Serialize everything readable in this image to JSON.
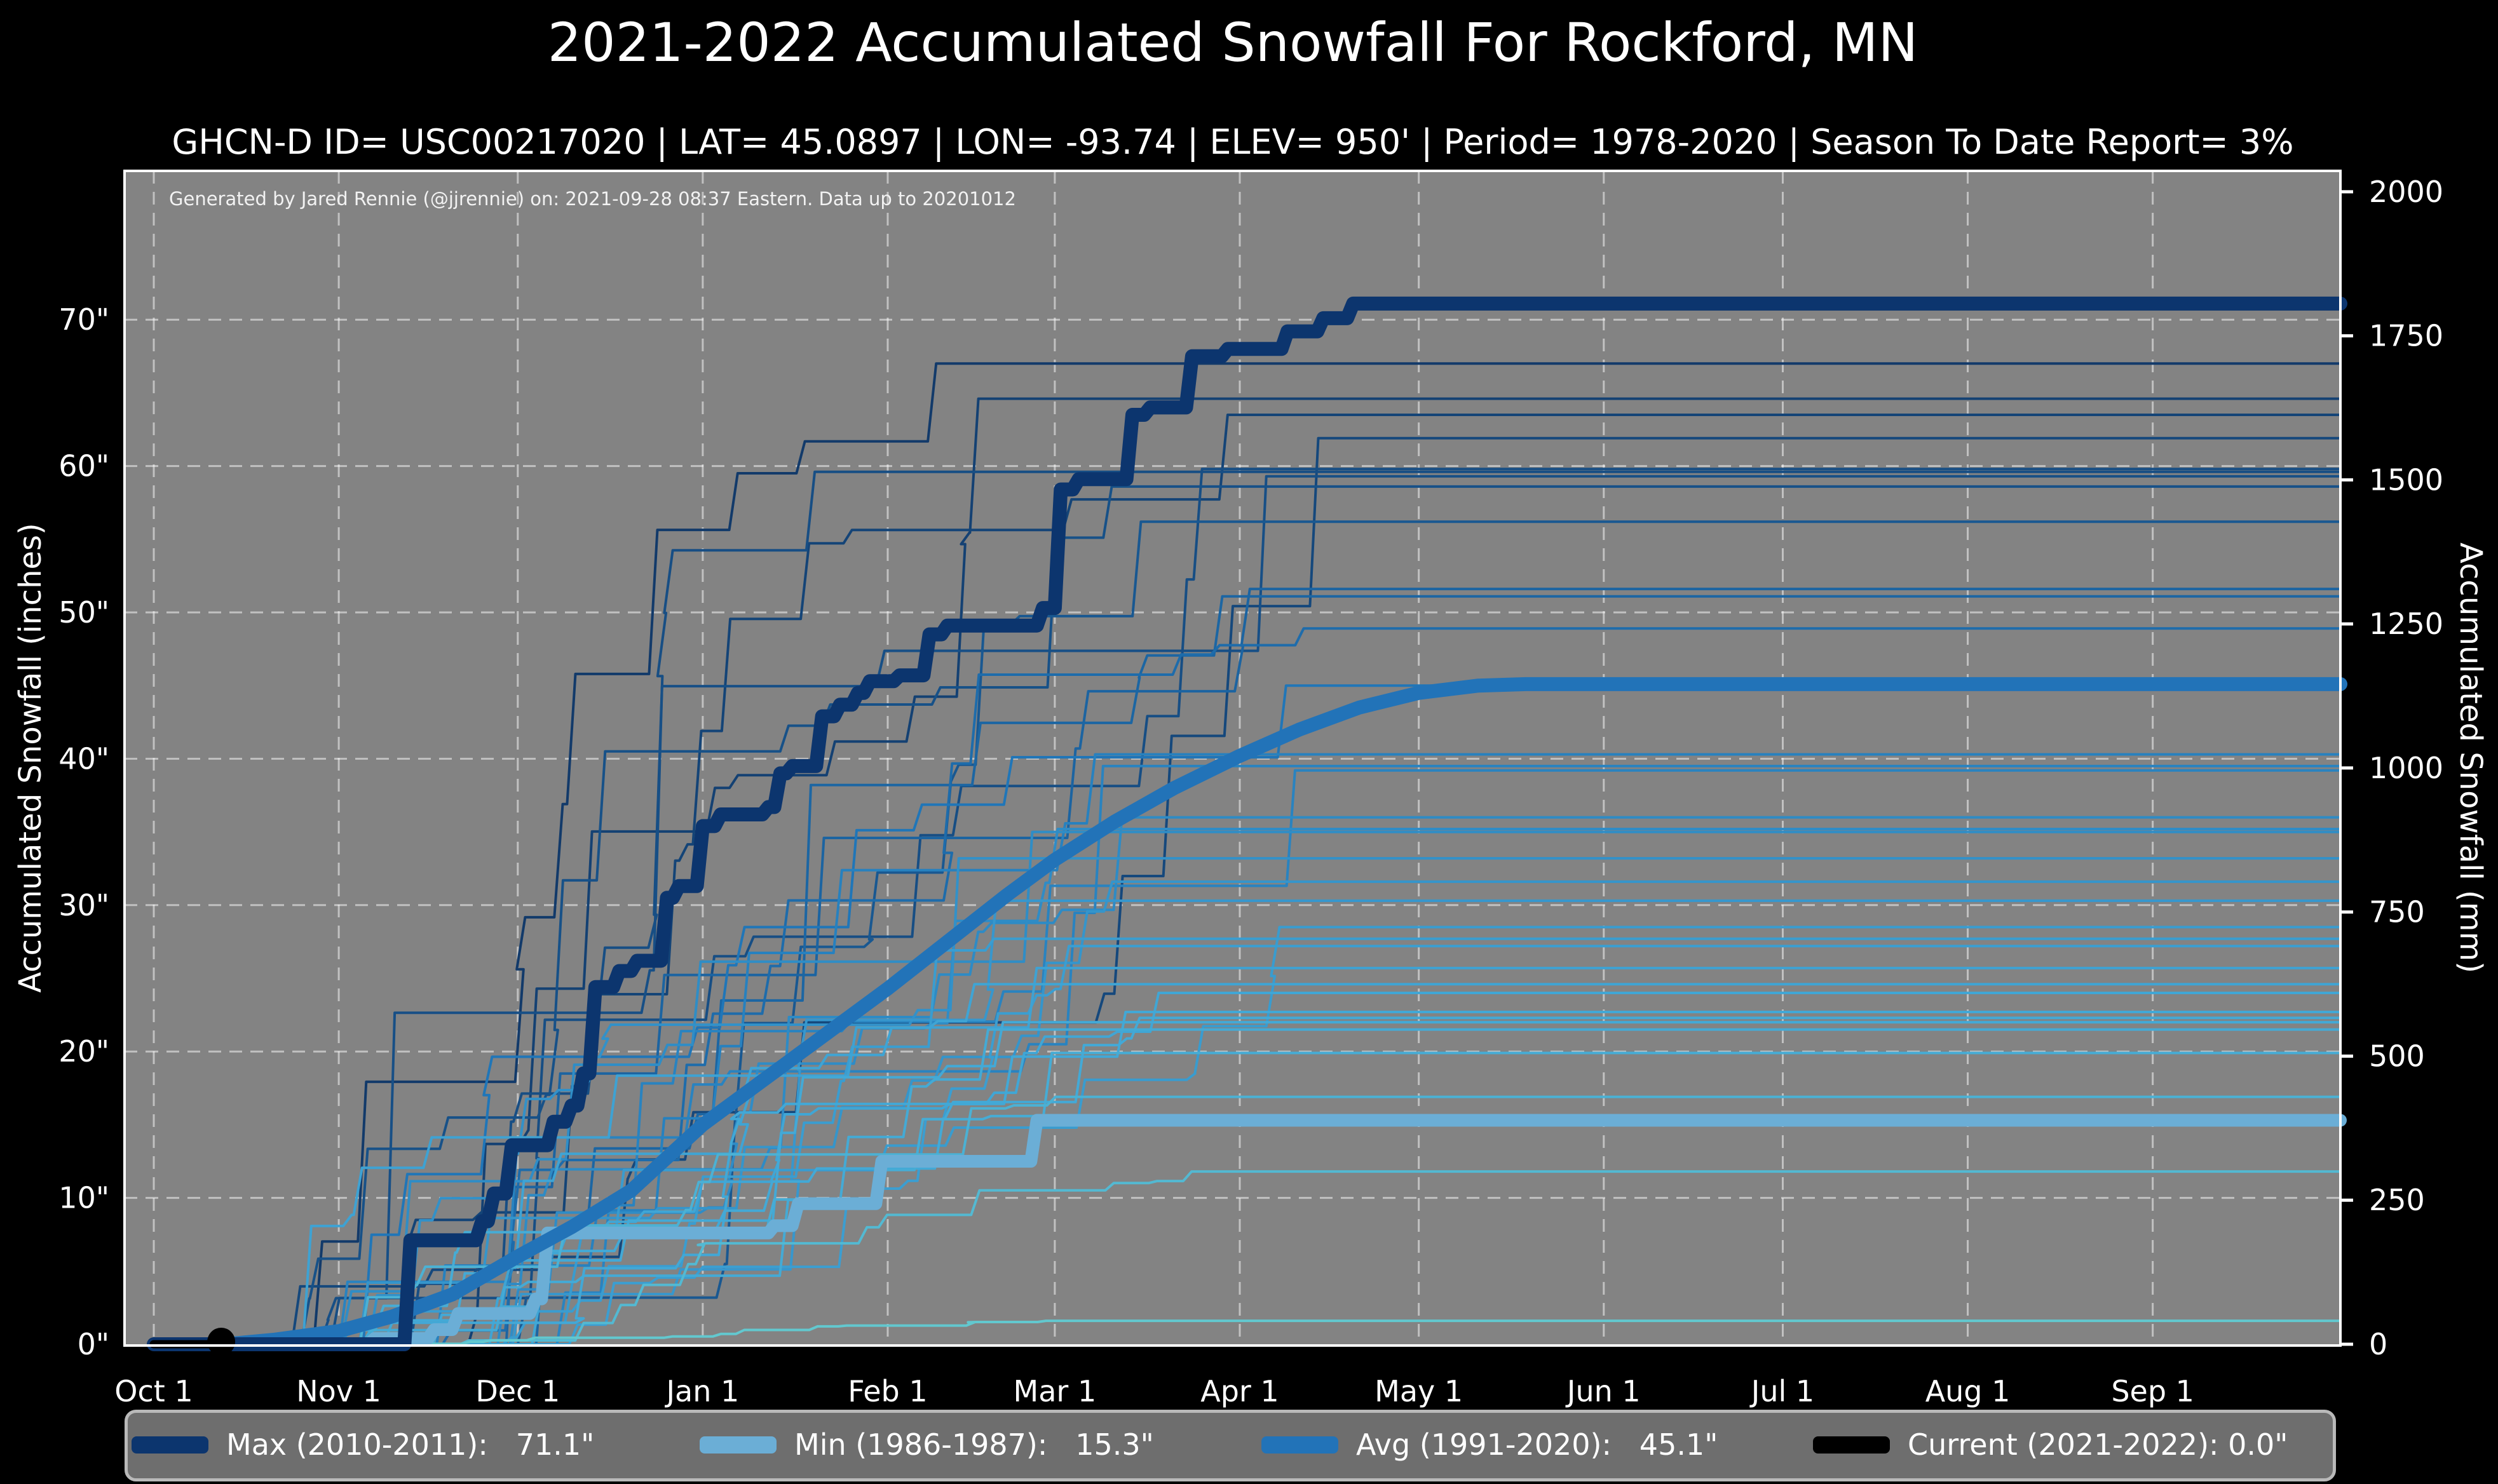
{
  "title": "2021-2022 Accumulated Snowfall For Rockford, MN",
  "subtitle": "GHCN-D ID= USC00217020 | LAT= 45.0897 | LON= -93.74 | ELEV= 950' | Period= 1978-2020 | Season To Date Report= 3%",
  "attribution": "Generated by Jared Rennie (@jjrennie) on: 2021-09-28 08:37 Eastern. Data up to 20201012",
  "colors": {
    "figure_background": "#000000",
    "plot_background": "#838383",
    "gridline": "rgba(255,255,255,0.5)",
    "spine": "#ffffff",
    "max": "#0c356e",
    "min": "#6baed6",
    "avg": "#2273b8",
    "current": "#000000",
    "season_palette": [
      "#62c8cf",
      "#41a7d6",
      "#2076b8",
      "#123a6a"
    ]
  },
  "chart_data": {
    "type": "line",
    "title": "2021-2022 Accumulated Snowfall For Rockford, MN",
    "x": {
      "unit": "day of season (Oct 1 = 0)",
      "range_days": [
        0,
        366.5
      ],
      "ticks": [
        {
          "label": "Oct 1",
          "day": 0
        },
        {
          "label": "Nov 1",
          "day": 31
        },
        {
          "label": "Dec 1",
          "day": 61
        },
        {
          "label": "Jan 1",
          "day": 92
        },
        {
          "label": "Feb 1",
          "day": 123
        },
        {
          "label": "Mar 1",
          "day": 151
        },
        {
          "label": "Apr 1",
          "day": 182
        },
        {
          "label": "May 1",
          "day": 212
        },
        {
          "label": "Jun 1",
          "day": 243
        },
        {
          "label": "Jul 1",
          "day": 273
        },
        {
          "label": "Aug 1",
          "day": 304
        },
        {
          "label": "Sep 1",
          "day": 335
        }
      ]
    },
    "y_left": {
      "label": "Accumulated Snowfall (inches)",
      "range": [
        0,
        80.2
      ],
      "gridlines_at": [
        10,
        20,
        30,
        40,
        50,
        60,
        70
      ],
      "ticks": [
        {
          "label": "0\"",
          "value": 0
        },
        {
          "label": "10\"",
          "value": 10
        },
        {
          "label": "20\"",
          "value": 20
        },
        {
          "label": "30\"",
          "value": 30
        },
        {
          "label": "40\"",
          "value": 40
        },
        {
          "label": "50\"",
          "value": 50
        },
        {
          "label": "60\"",
          "value": 60
        },
        {
          "label": "70\"",
          "value": 70
        }
      ]
    },
    "y_right": {
      "label": "Accumulated Snowfall (mm)",
      "range": [
        0,
        2037
      ],
      "ticks": [
        {
          "label": "0",
          "value": 0
        },
        {
          "label": "250",
          "value": 250
        },
        {
          "label": "500",
          "value": 500
        },
        {
          "label": "750",
          "value": 750
        },
        {
          "label": "1000",
          "value": 1000
        },
        {
          "label": "1250",
          "value": 1250
        },
        {
          "label": "1500",
          "value": 1500
        },
        {
          "label": "1750",
          "value": 1750
        },
        {
          "label": "2000",
          "value": 2000
        }
      ]
    },
    "series": [
      {
        "name": "Max (2010-2011)",
        "total_inches": 71.1,
        "color_key": "max",
        "width": 22,
        "points": [
          [
            0,
            0
          ],
          [
            42,
            0
          ],
          [
            43,
            7.1
          ],
          [
            54,
            7.1
          ],
          [
            55,
            8.4
          ],
          [
            56,
            8.4
          ],
          [
            57,
            10.3
          ],
          [
            59,
            10.3
          ],
          [
            60,
            13.6
          ],
          [
            66,
            13.6
          ],
          [
            67,
            15.2
          ],
          [
            69,
            15.2
          ],
          [
            70,
            16.3
          ],
          [
            71,
            16.3
          ],
          [
            72,
            18.5
          ],
          [
            73,
            18.5
          ],
          [
            74,
            24.4
          ],
          [
            77,
            24.4
          ],
          [
            78,
            25.5
          ],
          [
            80,
            25.5
          ],
          [
            81,
            26.2
          ],
          [
            85,
            26.2
          ],
          [
            86,
            30.5
          ],
          [
            87,
            30.5
          ],
          [
            88,
            31.3
          ],
          [
            91,
            31.3
          ],
          [
            92,
            35.4
          ],
          [
            94,
            35.4
          ],
          [
            95,
            36.2
          ],
          [
            102,
            36.2
          ],
          [
            103,
            36.7
          ],
          [
            104,
            36.7
          ],
          [
            105,
            39.0
          ],
          [
            106,
            39.0
          ],
          [
            107,
            39.5
          ],
          [
            111,
            39.5
          ],
          [
            112,
            42.9
          ],
          [
            114,
            42.9
          ],
          [
            115,
            43.7
          ],
          [
            117,
            43.7
          ],
          [
            118,
            44.5
          ],
          [
            119,
            44.5
          ],
          [
            120,
            45.3
          ],
          [
            124,
            45.3
          ],
          [
            125,
            45.7
          ],
          [
            129,
            45.7
          ],
          [
            130,
            48.5
          ],
          [
            132,
            48.5
          ],
          [
            133,
            49.1
          ],
          [
            148,
            49.1
          ],
          [
            149,
            50.3
          ],
          [
            151,
            50.3
          ],
          [
            152,
            58.4
          ],
          [
            154,
            58.4
          ],
          [
            155,
            59.1
          ],
          [
            163,
            59.1
          ],
          [
            164,
            63.5
          ],
          [
            166,
            63.5
          ],
          [
            167,
            64.0
          ],
          [
            173,
            64.0
          ],
          [
            174,
            67.5
          ],
          [
            179,
            67.5
          ],
          [
            180,
            68.0
          ],
          [
            189,
            68.0
          ],
          [
            190,
            69.2
          ],
          [
            195,
            69.2
          ],
          [
            196,
            70.1
          ],
          [
            200,
            70.1
          ],
          [
            201,
            71.1
          ],
          [
            366.5,
            71.1
          ]
        ]
      },
      {
        "name": "Avg (1991-2020)",
        "total_inches": 45.1,
        "color_key": "avg",
        "width": 22,
        "points": [
          [
            12,
            0
          ],
          [
            20,
            0.3
          ],
          [
            31,
            0.9
          ],
          [
            40,
            1.9
          ],
          [
            50,
            3.4
          ],
          [
            61,
            6.0
          ],
          [
            70,
            8.0
          ],
          [
            80,
            10.5
          ],
          [
            92,
            15.0
          ],
          [
            102,
            18.0
          ],
          [
            112,
            21.0
          ],
          [
            123,
            24.3
          ],
          [
            133,
            27.5
          ],
          [
            143,
            30.7
          ],
          [
            151,
            33.1
          ],
          [
            161,
            35.7
          ],
          [
            171,
            38.0
          ],
          [
            182,
            40.2
          ],
          [
            192,
            42.0
          ],
          [
            202,
            43.5
          ],
          [
            212,
            44.5
          ],
          [
            222,
            45.0
          ],
          [
            230,
            45.1
          ],
          [
            366.5,
            45.1
          ]
        ]
      },
      {
        "name": "Min (1986-1987)",
        "total_inches": 15.3,
        "color_key": "min",
        "width": 20,
        "points": [
          [
            0,
            0
          ],
          [
            36,
            0
          ],
          [
            37,
            0.4
          ],
          [
            46,
            0.4
          ],
          [
            47,
            1.0
          ],
          [
            50,
            1.0
          ],
          [
            51,
            2.1
          ],
          [
            63,
            2.1
          ],
          [
            64,
            3.1
          ],
          [
            65,
            3.1
          ],
          [
            66,
            7.6
          ],
          [
            103,
            7.6
          ],
          [
            104,
            8.1
          ],
          [
            107,
            8.1
          ],
          [
            108,
            9.6
          ],
          [
            121,
            9.6
          ],
          [
            122,
            12.5
          ],
          [
            147,
            12.5
          ],
          [
            148,
            15.3
          ],
          [
            366.5,
            15.3
          ]
        ]
      },
      {
        "name": "Current (2021-2022)",
        "total_inches": 0.0,
        "color_key": "current",
        "width": 13,
        "end_marker": {
          "day": 11.3,
          "value": 0,
          "radius": 22
        },
        "points": [
          [
            0,
            0
          ],
          [
            11.3,
            0
          ]
        ]
      }
    ],
    "background_seasons": {
      "period": "1978-2020",
      "count": 36,
      "seed": 11,
      "line_width": 4,
      "final_totals_inches": [
        67.0,
        64.6,
        63.5,
        61.9,
        59.8,
        59.6,
        59.3,
        58.6,
        56.2,
        51.6,
        51.1,
        48.9,
        45.0,
        40.3,
        39.5,
        39.2,
        36.0,
        35.2,
        35.0,
        33.2,
        31.6,
        30.3,
        28.5,
        27.7,
        27.2,
        25.7,
        24.6,
        24.0,
        22.7,
        22.3,
        22.0,
        21.5,
        19.9,
        16.9,
        11.8,
        1.6
      ]
    },
    "legend": [
      {
        "label": "Max (2010-2011):   71.1\"",
        "color_key": "max"
      },
      {
        "label": "Min (1986-1987):   15.3\"",
        "color_key": "min"
      },
      {
        "label": "Avg (1991-2020):   45.1\"",
        "color_key": "avg"
      },
      {
        "label": "Current (2021-2022): 0.0\"",
        "color_key": "current"
      }
    ]
  }
}
